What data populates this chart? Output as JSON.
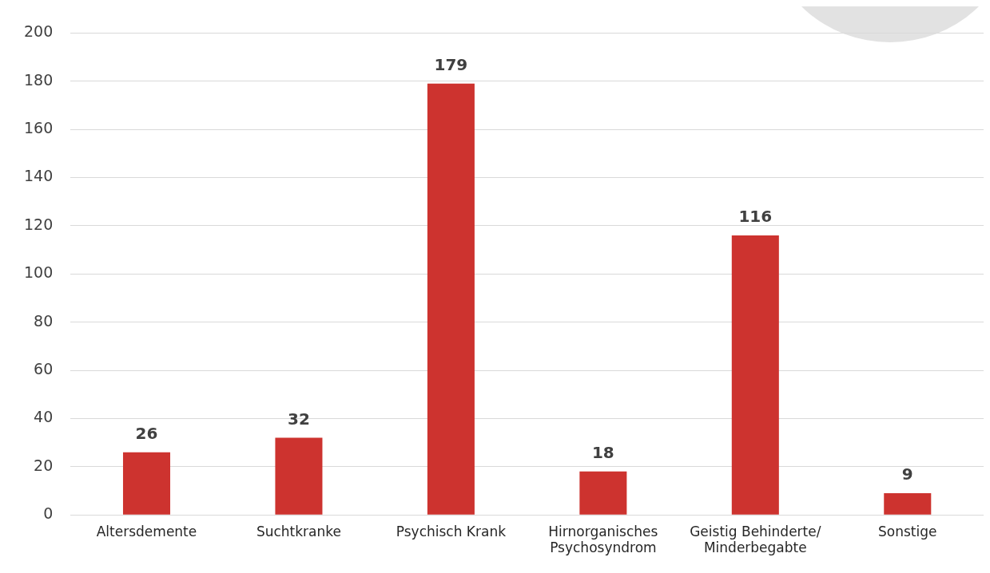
{
  "chart_data": {
    "type": "bar",
    "categories": [
      "Altersdemente",
      "Suchtkranke",
      "Psychisch Krank",
      "Hirnorganisches Psychosyndrom",
      "Geistig Behinderte/ Minderbegabte",
      "Sonstige"
    ],
    "values": [
      26,
      32,
      179,
      18,
      116,
      9
    ],
    "color": "#cd332f",
    "ylim": [
      0,
      200
    ],
    "yticks": [
      0,
      20,
      40,
      60,
      80,
      100,
      120,
      140,
      160,
      180,
      200
    ],
    "grid": "y",
    "legend": false,
    "data_labels": true
  }
}
